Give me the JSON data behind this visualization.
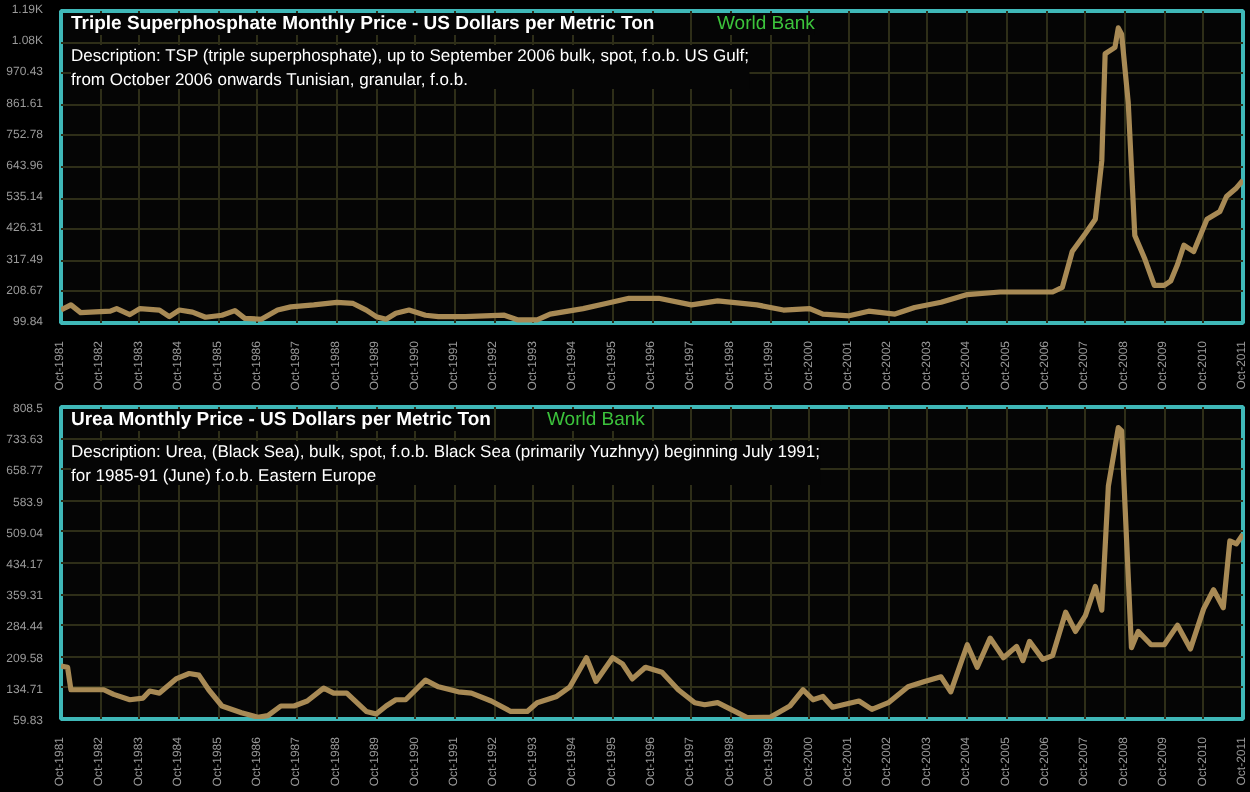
{
  "chart_data": [
    {
      "type": "line",
      "title": "Triple Superphosphate Monthly Price - US Dollars per Metric Ton",
      "subtitle": "Description: TSP (triple superphosphate), up to September 2006 bulk, spot, f.o.b. US Gulf;\nfrom October 2006 onwards Tunisian, granular, f.o.b.",
      "annotations": [
        "World Bank"
      ],
      "grid": true,
      "marker": "none",
      "line_style": "solid",
      "xlim": [
        "1981-10",
        "2011-10"
      ],
      "ylim": [
        99.84,
        1188.04
      ],
      "yticks": [
        99.84,
        208.67,
        317.49,
        426.31,
        535.14,
        643.96,
        752.78,
        861.61,
        970.43,
        {
          "value": 1079.26,
          "label": "1.08K"
        },
        {
          "value": 1188.04,
          "label": "1.19K"
        }
      ],
      "xticks": [
        {
          "value": "1981-10",
          "label": "Oct-1981"
        },
        {
          "value": "1982-10",
          "label": "Oct-1982"
        },
        {
          "value": "1983-10",
          "label": "Oct-1983"
        },
        {
          "value": "1984-10",
          "label": "Oct-1984"
        },
        {
          "value": "1985-10",
          "label": "Oct-1985"
        },
        {
          "value": "1986-10",
          "label": "Oct-1986"
        },
        {
          "value": "1987-10",
          "label": "Oct-1987"
        },
        {
          "value": "1988-10",
          "label": "Oct-1988"
        },
        {
          "value": "1989-10",
          "label": "Oct-1989"
        },
        {
          "value": "1990-10",
          "label": "Oct-1990"
        },
        {
          "value": "1991-10",
          "label": "Oct-1991"
        },
        {
          "value": "1992-10",
          "label": "Oct-1992"
        },
        {
          "value": "1993-10",
          "label": "Oct-1993"
        },
        {
          "value": "1994-10",
          "label": "Oct-1994"
        },
        {
          "value": "1995-10",
          "label": "Oct-1995"
        },
        {
          "value": "1996-10",
          "label": "Oct-1996"
        },
        {
          "value": "1997-10",
          "label": "Oct-1997"
        },
        {
          "value": "1998-10",
          "label": "Oct-1998"
        },
        {
          "value": "1999-10",
          "label": "Oct-1999"
        },
        {
          "value": "2000-10",
          "label": "Oct-2000"
        },
        {
          "value": "2001-10",
          "label": "Oct-2001"
        },
        {
          "value": "2002-10",
          "label": "Oct-2002"
        },
        {
          "value": "2003-10",
          "label": "Oct-2003"
        },
        {
          "value": "2004-10",
          "label": "Oct-2004"
        },
        {
          "value": "2005-10",
          "label": "Oct-2005"
        },
        {
          "value": "2006-10",
          "label": "Oct-2006"
        },
        {
          "value": "2007-10",
          "label": "Oct-2007"
        },
        {
          "value": "2008-10",
          "label": "Oct-2008"
        },
        {
          "value": "2009-10",
          "label": "Oct-2009"
        },
        {
          "value": "2010-10",
          "label": "Oct-2010"
        },
        {
          "value": "2011-10",
          "label": "Oct-2011"
        }
      ],
      "series": [
        {
          "color": "#a88a55",
          "x": [
            "1981-10",
            "1982-01",
            "1982-04",
            "1983-01",
            "1983-03",
            "1983-07",
            "1983-10",
            "1984-04",
            "1984-07",
            "1984-10",
            "1985-02",
            "1985-06",
            "1985-11",
            "1986-03",
            "1986-06",
            "1986-11",
            "1987-04",
            "1987-08",
            "1988-03",
            "1988-10",
            "1989-03",
            "1989-07",
            "1989-10",
            "1990-01",
            "1990-04",
            "1990-08",
            "1991-01",
            "1991-05",
            "1992-01",
            "1993-01",
            "1993-05",
            "1993-11",
            "1994-03",
            "1995-01",
            "1995-08",
            "1996-03",
            "1996-12",
            "1997-10",
            "1998-06",
            "1999-06",
            "2000-02",
            "2000-10",
            "2001-02",
            "2001-10",
            "2002-04",
            "2002-12",
            "2003-06",
            "2004-02",
            "2004-10",
            "2005-08",
            "2006-12",
            "2007-03",
            "2007-06",
            "2007-10",
            "2008-01",
            "2008-03",
            "2008-04",
            "2008-07",
            "2008-08",
            "2008-09",
            "2008-11",
            "2009-01",
            "2009-04",
            "2009-07",
            "2009-10",
            "2009-12",
            "2010-02",
            "2010-04",
            "2010-07",
            "2010-11",
            "2011-03",
            "2011-05",
            "2011-08",
            "2011-10"
          ],
          "values": [
            145,
            163,
            136,
            141,
            150,
            129,
            150,
            145,
            122,
            145,
            138,
            120,
            127,
            143,
            116,
            113,
            145,
            156,
            163,
            172,
            168,
            145,
            122,
            113,
            134,
            145,
            127,
            122,
            122,
            127,
            111,
            111,
            131,
            150,
            168,
            186,
            186,
            163,
            177,
            163,
            145,
            150,
            131,
            125,
            141,
            131,
            154,
            172,
            199,
            208,
            208,
            224,
            349,
            412,
            462,
            666,
            1039,
            1061,
            1129,
            1107,
            869,
            405,
            326,
            231,
            231,
            247,
            304,
            371,
            349,
            462,
            489,
            541,
            571,
            598
          ]
        }
      ]
    },
    {
      "type": "line",
      "title": "Urea Monthly Price - US Dollars per Metric Ton",
      "subtitle": "Description: Urea, (Black Sea), bulk, spot, f.o.b. Black Sea (primarily Yuzhnyy) beginning July 1991;\nfor 1985-91 (June) f.o.b. Eastern Europe",
      "annotations": [
        "World Bank"
      ],
      "grid": true,
      "marker": "none",
      "line_style": "solid",
      "xlim": [
        "1981-10",
        "2011-10"
      ],
      "ylim": [
        59.83,
        808.5
      ],
      "yticks": [
        59.83,
        134.71,
        209.58,
        284.44,
        359.31,
        434.17,
        509.04,
        583.9,
        658.77,
        733.63,
        808.5
      ],
      "xticks": [
        {
          "value": "1981-10",
          "label": "Oct-1981"
        },
        {
          "value": "1982-10",
          "label": "Oct-1982"
        },
        {
          "value": "1983-10",
          "label": "Oct-1983"
        },
        {
          "value": "1984-10",
          "label": "Oct-1984"
        },
        {
          "value": "1985-10",
          "label": "Oct-1985"
        },
        {
          "value": "1986-10",
          "label": "Oct-1986"
        },
        {
          "value": "1987-10",
          "label": "Oct-1987"
        },
        {
          "value": "1988-10",
          "label": "Oct-1988"
        },
        {
          "value": "1989-10",
          "label": "Oct-1989"
        },
        {
          "value": "1990-10",
          "label": "Oct-1990"
        },
        {
          "value": "1991-10",
          "label": "Oct-1991"
        },
        {
          "value": "1992-10",
          "label": "Oct-1992"
        },
        {
          "value": "1993-10",
          "label": "Oct-1993"
        },
        {
          "value": "1994-10",
          "label": "Oct-1994"
        },
        {
          "value": "1995-10",
          "label": "Oct-1995"
        },
        {
          "value": "1996-10",
          "label": "Oct-1996"
        },
        {
          "value": "1997-10",
          "label": "Oct-1997"
        },
        {
          "value": "1998-10",
          "label": "Oct-1998"
        },
        {
          "value": "1999-10",
          "label": "Oct-1999"
        },
        {
          "value": "2000-10",
          "label": "Oct-2000"
        },
        {
          "value": "2001-10",
          "label": "Oct-2001"
        },
        {
          "value": "2002-10",
          "label": "Oct-2002"
        },
        {
          "value": "2003-10",
          "label": "Oct-2003"
        },
        {
          "value": "2004-10",
          "label": "Oct-2004"
        },
        {
          "value": "2005-10",
          "label": "Oct-2005"
        },
        {
          "value": "2006-10",
          "label": "Oct-2006"
        },
        {
          "value": "2007-10",
          "label": "Oct-2007"
        },
        {
          "value": "2008-10",
          "label": "Oct-2008"
        },
        {
          "value": "2009-10",
          "label": "Oct-2009"
        },
        {
          "value": "2010-10",
          "label": "Oct-2010"
        },
        {
          "value": "2011-10",
          "label": "Oct-2011"
        }
      ],
      "series": [
        {
          "color": "#a88a55",
          "x": [
            "1981-10",
            "1981-12",
            "1982-01",
            "1982-11",
            "1983-02",
            "1983-07",
            "1983-11",
            "1984-01",
            "1984-04",
            "1984-09",
            "1985-01",
            "1985-04",
            "1985-07",
            "1985-11",
            "1986-05",
            "1986-10",
            "1987-01",
            "1987-05",
            "1987-09",
            "1988-01",
            "1988-06",
            "1988-09",
            "1989-01",
            "1989-07",
            "1989-10",
            "1990-01",
            "1990-04",
            "1990-07",
            "1991-01",
            "1991-05",
            "1991-11",
            "1992-03",
            "1992-09",
            "1993-03",
            "1993-08",
            "1993-11",
            "1994-05",
            "1994-09",
            "1995-02",
            "1995-05",
            "1995-10",
            "1996-01",
            "1996-04",
            "1996-08",
            "1997-01",
            "1997-06",
            "1997-11",
            "1998-02",
            "1998-06",
            "1998-12",
            "1999-03",
            "1999-10",
            "2000-04",
            "2000-08",
            "2000-11",
            "2001-02",
            "2001-05",
            "2002-01",
            "2002-05",
            "2002-10",
            "2003-04",
            "2003-09",
            "2004-02",
            "2004-05",
            "2004-10",
            "2005-01",
            "2005-05",
            "2005-09",
            "2006-01",
            "2006-03",
            "2006-05",
            "2006-09",
            "2006-12",
            "2007-04",
            "2007-07",
            "2007-10",
            "2008-01",
            "2008-03",
            "2008-05",
            "2008-08",
            "2008-09",
            "2008-12",
            "2009-02",
            "2009-06",
            "2009-10",
            "2010-02",
            "2010-06",
            "2010-10",
            "2011-01",
            "2011-04",
            "2011-06",
            "2011-08",
            "2011-10"
          ],
          "values": [
            187,
            184,
            130,
            130,
            119,
            106,
            110,
            127,
            122,
            156,
            169,
            165,
            130,
            91,
            75,
            64,
            68,
            91,
            91,
            103,
            134,
            122,
            122,
            78,
            72,
            91,
            106,
            106,
            153,
            137,
            125,
            122,
            103,
            78,
            78,
            99,
            114,
            137,
            207,
            150,
            207,
            192,
            156,
            184,
            172,
            130,
            99,
            94,
            99,
            75,
            63,
            64,
            91,
            130,
            106,
            114,
            88,
            103,
            83,
            99,
            137,
            150,
            161,
            125,
            238,
            184,
            254,
            207,
            234,
            200,
            246,
            203,
            212,
            316,
            270,
            308,
            378,
            321,
            619,
            759,
            751,
            231,
            270,
            238,
            238,
            285,
            228,
            324,
            370,
            327,
            487,
            480,
            503
          ]
        }
      ]
    }
  ]
}
